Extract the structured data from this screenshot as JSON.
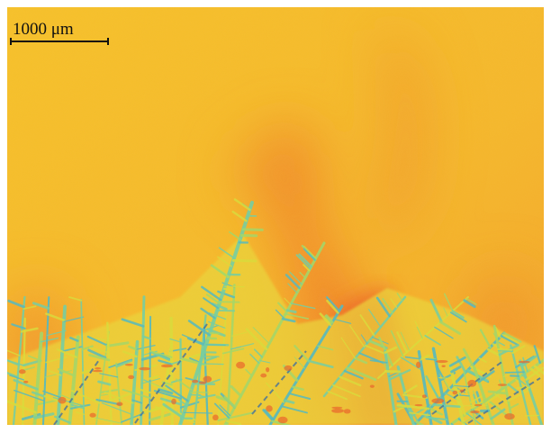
{
  "scale_bar": {
    "label": "1000 μm"
  }
}
